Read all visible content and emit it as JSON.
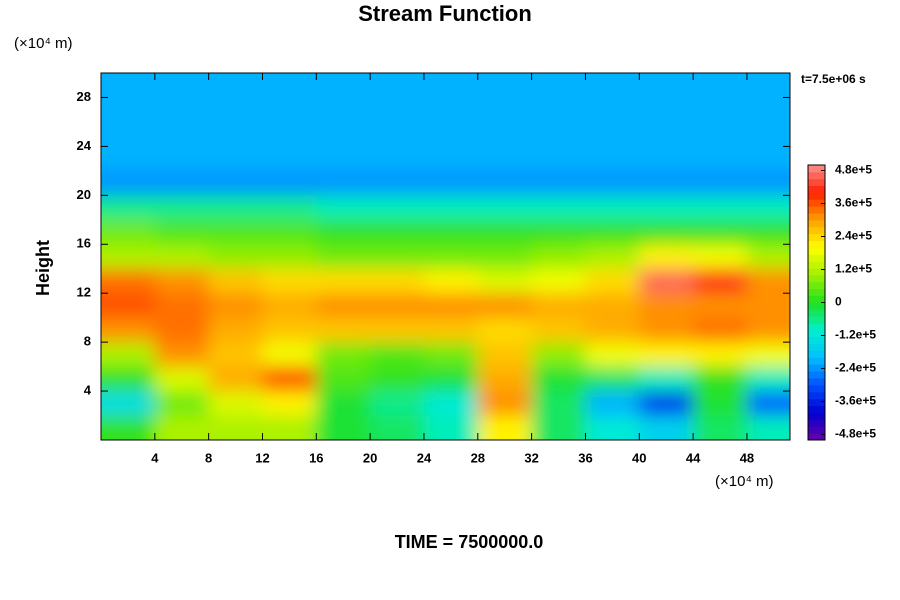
{
  "chart_data": {
    "type": "heatmap",
    "title": "Stream Function",
    "y_unit": "(×10⁴ m)",
    "x_unit": "(×10⁴ m)",
    "ylabel": "Height",
    "time_note": "t=7.5e+06 s",
    "footer": "TIME = 7500000.0",
    "x": [
      2,
      6,
      10,
      14,
      18,
      22,
      26,
      30,
      34,
      38,
      42,
      46,
      50
    ],
    "y": [
      29,
      27,
      25,
      23,
      21,
      19,
      17,
      15,
      13,
      11,
      9,
      7,
      5,
      3,
      1
    ],
    "z": [
      [
        -220000.0,
        -220000.0,
        -220000.0,
        -220000.0,
        -220000.0,
        -220000.0,
        -220000.0,
        -220000.0,
        -220000.0,
        -220000.0,
        -220000.0,
        -220000.0,
        -220000.0
      ],
      [
        -220000.0,
        -220000.0,
        -220000.0,
        -220000.0,
        -220000.0,
        -220000.0,
        -220000.0,
        -220000.0,
        -220000.0,
        -220000.0,
        -220000.0,
        -220000.0,
        -220000.0
      ],
      [
        -220000.0,
        -220000.0,
        -220000.0,
        -220000.0,
        -220000.0,
        -220000.0,
        -220000.0,
        -220000.0,
        -220000.0,
        -220000.0,
        -220000.0,
        -220000.0,
        -220000.0
      ],
      [
        -220000.0,
        -220000.0,
        -220000.0,
        -220000.0,
        -220000.0,
        -220000.0,
        -220000.0,
        -220000.0,
        -220000.0,
        -220000.0,
        -220000.0,
        -220000.0,
        -220000.0
      ],
      [
        -240000.0,
        -240000.0,
        -230000.0,
        -230000.0,
        -230000.0,
        -230000.0,
        -230000.0,
        -230000.0,
        -230000.0,
        -230000.0,
        -230000.0,
        -240000.0,
        -240000.0
      ],
      [
        -60000.0,
        -60000.0,
        -70000.0,
        -70000.0,
        -80000.0,
        -80000.0,
        -90000.0,
        -90000.0,
        -100000.0,
        -100000.0,
        -100000.0,
        -100000.0,
        -100000.0
      ],
      [
        50000.0,
        40000.0,
        30000.0,
        30000.0,
        20000.0,
        20000.0,
        10000.0,
        10000.0,
        10000.0,
        10000.0,
        10000.0,
        10000.0,
        10000.0
      ],
      [
        120000.0,
        100000.0,
        80000.0,
        80000.0,
        60000.0,
        60000.0,
        50000.0,
        60000.0,
        80000.0,
        120000.0,
        200000.0,
        180000.0,
        120000.0
      ],
      [
        340000.0,
        320000.0,
        260000.0,
        240000.0,
        230000.0,
        240000.0,
        220000.0,
        160000.0,
        180000.0,
        240000.0,
        460000.0,
        420000.0,
        320000.0
      ],
      [
        360000.0,
        340000.0,
        300000.0,
        290000.0,
        300000.0,
        320000.0,
        320000.0,
        300000.0,
        280000.0,
        290000.0,
        300000.0,
        320000.0,
        320000.0
      ],
      [
        300000.0,
        340000.0,
        280000.0,
        260000.0,
        260000.0,
        270000.0,
        260000.0,
        240000.0,
        260000.0,
        280000.0,
        320000.0,
        340000.0,
        300000.0
      ],
      [
        120000.0,
        320000.0,
        260000.0,
        180000.0,
        60000.0,
        30000.0,
        50000.0,
        250000.0,
        80000.0,
        180000.0,
        200000.0,
        220000.0,
        180000.0
      ],
      [
        20000.0,
        160000.0,
        280000.0,
        360000.0,
        40000.0,
        0.0,
        -20000.0,
        280000.0,
        -10000.0,
        -40000.0,
        -80000.0,
        0.0,
        -100000.0
      ],
      [
        -140000.0,
        60000.0,
        160000.0,
        220000.0,
        -20000.0,
        -60000.0,
        -120000.0,
        320000.0,
        -30000.0,
        -220000.0,
        -340000.0,
        -20000.0,
        -280000.0
      ],
      [
        0.0,
        100000.0,
        120000.0,
        120000.0,
        -20000.0,
        -40000.0,
        -80000.0,
        200000.0,
        -50000.0,
        -120000.0,
        -160000.0,
        -30000.0,
        -100000.0
      ]
    ],
    "xlim": [
      0,
      51.2
    ],
    "ylim": [
      0,
      30
    ],
    "xticks": [
      4,
      8,
      12,
      16,
      20,
      24,
      28,
      32,
      36,
      40,
      44,
      48
    ],
    "yticks": [
      4,
      8,
      12,
      16,
      20,
      24,
      28
    ],
    "zlim": [
      -500000,
      500000
    ],
    "zticks": [
      {
        "value": 480000,
        "label": "4.8e+5"
      },
      {
        "value": 360000,
        "label": "3.6e+5"
      },
      {
        "value": 240000,
        "label": "2.4e+5"
      },
      {
        "value": 120000,
        "label": "1.2e+5"
      },
      0,
      {
        "value": -120000,
        "label": "-1.2e+5"
      },
      {
        "value": -240000,
        "label": "-2.4e+5"
      },
      {
        "value": -360000,
        "label": "-3.6e+5"
      },
      {
        "value": -480000,
        "label": "-4.8e+5"
      }
    ],
    "colormap": [
      "#6a00a8",
      "#0000d0",
      "#0050ff",
      "#00c0ff",
      "#00f0d0",
      "#20e020",
      "#a0f000",
      "#ffff00",
      "#ffa000",
      "#ff2000",
      "#ff9090"
    ]
  }
}
